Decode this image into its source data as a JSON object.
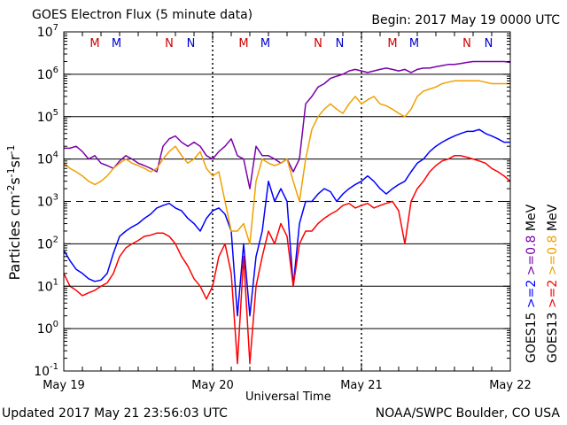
{
  "chart_data": {
    "type": "line",
    "title": "GOES Electron Flux (5 minute data)",
    "begin": "Begin: 2017 May 19 0000 UTC",
    "xlabel": "Universal Time",
    "ylabel_text": "Particles cm",
    "ylabel_sup1": "-2",
    "ylabel_mid1": "s",
    "ylabel_sup2": "-1",
    "ylabel_mid2": "sr",
    "ylabel_sup3": "-1",
    "updated": "Updated 2017 May 21 23:56:03 UTC",
    "credit": "NOAA/SWPC Boulder, CO USA",
    "x_ticks": [
      "May 19",
      "May 20",
      "May 21",
      "May 22"
    ],
    "y_scale": "log",
    "ylim": [
      0.1,
      10000000
    ],
    "y_tick_base": "10",
    "y_tick_exps": [
      "-1",
      "0",
      "1",
      "2",
      "3",
      "4",
      "5",
      "6",
      "7"
    ],
    "threshold_y": 1000,
    "xlim_hours": [
      0,
      72
    ],
    "mn_markers": [
      {
        "label": "M",
        "hour": 5.0,
        "color": "#cc0000"
      },
      {
        "label": "M",
        "hour": 8.5,
        "color": "#0000cc"
      },
      {
        "label": "N",
        "hour": 17.0,
        "color": "#cc0000"
      },
      {
        "label": "N",
        "hour": 20.5,
        "color": "#0000cc"
      },
      {
        "label": "M",
        "hour": 29.0,
        "color": "#cc0000"
      },
      {
        "label": "M",
        "hour": 32.5,
        "color": "#0000cc"
      },
      {
        "label": "N",
        "hour": 41.0,
        "color": "#cc0000"
      },
      {
        "label": "N",
        "hour": 44.5,
        "color": "#0000cc"
      },
      {
        "label": "M",
        "hour": 53.0,
        "color": "#cc0000"
      },
      {
        "label": "M",
        "hour": 56.5,
        "color": "#0000cc"
      },
      {
        "label": "N",
        "hour": 65.0,
        "color": "#cc0000"
      },
      {
        "label": "N",
        "hour": 68.5,
        "color": "#0000cc"
      }
    ],
    "right_labels": [
      {
        "text": "GOES15",
        "color": "#000000"
      },
      {
        "text": ">=2",
        "color": "#0000ff"
      },
      {
        "text": ">=0.8",
        "color": "#7a00aa"
      },
      {
        "text": "MeV",
        "color": "#000000"
      },
      {
        "text": "GOES13",
        "color": "#000000"
      },
      {
        "text": ">=2",
        "color": "#ff0000"
      },
      {
        "text": ">=0.8",
        "color": "#f0a000"
      },
      {
        "text": "MeV",
        "color": "#000000"
      }
    ],
    "series": [
      {
        "name": "GOES15 >=2 MeV",
        "color": "#0000ff",
        "x": [
          0,
          1,
          2,
          3,
          4,
          5,
          6,
          7,
          8,
          9,
          10,
          11,
          12,
          13,
          14,
          15,
          16,
          17,
          18,
          19,
          20,
          21,
          22,
          23,
          24,
          25,
          26,
          27,
          28,
          29,
          30,
          31,
          32,
          33,
          34,
          35,
          36,
          37,
          38,
          39,
          40,
          41,
          42,
          43,
          44,
          45,
          46,
          47,
          48,
          49,
          50,
          51,
          52,
          53,
          54,
          55,
          56,
          57,
          58,
          59,
          60,
          61,
          62,
          63,
          64,
          65,
          66,
          67,
          68,
          69,
          70,
          71,
          72
        ],
        "y": [
          70,
          40,
          25,
          20,
          15,
          13,
          14,
          20,
          60,
          150,
          200,
          250,
          300,
          400,
          500,
          700,
          800,
          900,
          700,
          600,
          400,
          300,
          200,
          400,
          600,
          700,
          500,
          200,
          2,
          100,
          2,
          50,
          200,
          3000,
          1000,
          2000,
          1000,
          10,
          300,
          1000,
          1000,
          1500,
          2000,
          1700,
          1000,
          1500,
          2000,
          2500,
          3000,
          4000,
          3000,
          2000,
          1500,
          2000,
          2500,
          3000,
          5000,
          8000,
          10000,
          15000,
          20000,
          25000,
          30000,
          35000,
          40000,
          45000,
          45000,
          50000,
          40000,
          35000,
          30000,
          25000,
          25000
        ]
      },
      {
        "name": "GOES15 >=0.8 MeV",
        "color": "#7a00aa",
        "x": [
          0,
          1,
          2,
          3,
          4,
          5,
          6,
          7,
          8,
          9,
          10,
          11,
          12,
          13,
          14,
          15,
          16,
          17,
          18,
          19,
          20,
          21,
          22,
          23,
          24,
          25,
          26,
          27,
          28,
          29,
          30,
          31,
          32,
          33,
          34,
          35,
          36,
          37,
          38,
          39,
          40,
          41,
          42,
          43,
          44,
          45,
          46,
          47,
          48,
          49,
          50,
          51,
          52,
          53,
          54,
          55,
          56,
          57,
          58,
          59,
          60,
          61,
          62,
          63,
          64,
          65,
          66,
          67,
          68,
          69,
          70,
          71,
          72
        ],
        "y": [
          18000,
          18000,
          20000,
          15000,
          10000,
          12000,
          8000,
          7000,
          6000,
          9000,
          12000,
          10000,
          8000,
          7000,
          6000,
          5000,
          20000,
          30000,
          35000,
          25000,
          20000,
          25000,
          20000,
          12000,
          10000,
          15000,
          20000,
          30000,
          12000,
          10000,
          2000,
          20000,
          12000,
          12000,
          10000,
          8000,
          10000,
          5000,
          10000,
          200000,
          300000,
          500000,
          600000,
          800000,
          900000,
          1000000,
          1200000,
          1300000,
          1200000,
          1100000,
          1200000,
          1300000,
          1400000,
          1300000,
          1200000,
          1300000,
          1100000,
          1300000,
          1400000,
          1400000,
          1500000,
          1600000,
          1700000,
          1700000,
          1800000,
          1900000,
          2000000,
          2000000,
          2000000,
          2000000,
          2000000,
          2000000,
          1900000
        ]
      },
      {
        "name": "GOES13 >=2 MeV",
        "color": "#ff0000",
        "x": [
          0,
          1,
          2,
          3,
          4,
          5,
          6,
          7,
          8,
          9,
          10,
          11,
          12,
          13,
          14,
          15,
          16,
          17,
          18,
          19,
          20,
          21,
          22,
          23,
          24,
          25,
          26,
          27,
          28,
          29,
          30,
          31,
          32,
          33,
          34,
          35,
          36,
          37,
          38,
          39,
          40,
          41,
          42,
          43,
          44,
          45,
          46,
          47,
          48,
          49,
          50,
          51,
          52,
          53,
          54,
          55,
          56,
          57,
          58,
          59,
          60,
          61,
          62,
          63,
          64,
          65,
          66,
          67,
          68,
          69,
          70,
          71,
          72
        ],
        "y": [
          20,
          10,
          8,
          6,
          7,
          8,
          10,
          12,
          20,
          50,
          80,
          100,
          120,
          150,
          160,
          180,
          180,
          150,
          100,
          50,
          30,
          15,
          10,
          5,
          10,
          50,
          100,
          20,
          0.15,
          50,
          0.15,
          10,
          50,
          200,
          100,
          300,
          150,
          10,
          100,
          200,
          200,
          300,
          400,
          500,
          600,
          800,
          900,
          700,
          800,
          900,
          700,
          800,
          900,
          1000,
          600,
          100,
          1000,
          2000,
          3000,
          5000,
          7000,
          9000,
          10000,
          12000,
          12000,
          11000,
          10000,
          9000,
          8000,
          6000,
          5000,
          4000,
          3000
        ]
      },
      {
        "name": "GOES13 >=0.8 MeV",
        "color": "#f0a000",
        "x": [
          0,
          1,
          2,
          3,
          4,
          5,
          6,
          7,
          8,
          9,
          10,
          11,
          12,
          13,
          14,
          15,
          16,
          17,
          18,
          19,
          20,
          21,
          22,
          23,
          24,
          25,
          26,
          27,
          28,
          29,
          30,
          31,
          32,
          33,
          34,
          35,
          36,
          37,
          38,
          39,
          40,
          41,
          42,
          43,
          44,
          45,
          46,
          47,
          48,
          49,
          50,
          51,
          52,
          53,
          54,
          55,
          56,
          57,
          58,
          59,
          60,
          61,
          62,
          63,
          64,
          65,
          66,
          67,
          68,
          69,
          70,
          71,
          72
        ],
        "y": [
          8000,
          6000,
          5000,
          4000,
          3000,
          2500,
          3000,
          4000,
          6000,
          8000,
          10000,
          8000,
          7000,
          6000,
          5000,
          6000,
          10000,
          15000,
          20000,
          12000,
          8000,
          10000,
          15000,
          6000,
          4000,
          5000,
          1000,
          200,
          200,
          300,
          100,
          3000,
          10000,
          8000,
          7000,
          8000,
          10000,
          3000,
          1000,
          10000,
          50000,
          100000,
          150000,
          200000,
          150000,
          120000,
          200000,
          300000,
          200000,
          250000,
          300000,
          200000,
          180000,
          150000,
          120000,
          100000,
          150000,
          300000,
          400000,
          450000,
          500000,
          600000,
          650000,
          700000,
          700000,
          700000,
          700000,
          700000,
          650000,
          600000,
          600000,
          600000,
          600000
        ]
      }
    ]
  }
}
